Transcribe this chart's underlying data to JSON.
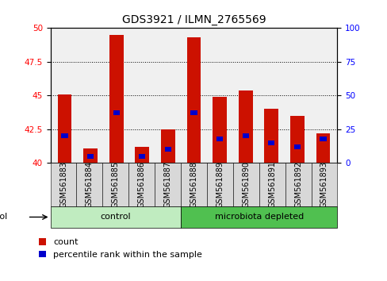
{
  "title": "GDS3921 / ILMN_2765569",
  "samples": [
    "GSM561883",
    "GSM561884",
    "GSM561885",
    "GSM561886",
    "GSM561887",
    "GSM561888",
    "GSM561889",
    "GSM561890",
    "GSM561891",
    "GSM561892",
    "GSM561893"
  ],
  "count_values": [
    45.1,
    41.1,
    49.5,
    41.2,
    42.5,
    49.3,
    44.9,
    45.4,
    44.0,
    43.5,
    42.2
  ],
  "percentile_values": [
    20,
    5,
    37,
    5,
    10,
    37,
    18,
    20,
    15,
    12,
    18
  ],
  "protocol_groups": [
    {
      "label": "control",
      "start": 0,
      "end": 5,
      "color": "#c0ecc0"
    },
    {
      "label": "microbiota depleted",
      "start": 5,
      "end": 11,
      "color": "#50c050"
    }
  ],
  "ylim_left": [
    40,
    50
  ],
  "ylim_right": [
    0,
    100
  ],
  "yticks_left": [
    40,
    42.5,
    45,
    47.5,
    50
  ],
  "yticks_right": [
    0,
    25,
    50,
    75,
    100
  ],
  "bar_color_red": "#cc1100",
  "bar_color_blue": "#0000cc",
  "grid_color": "black",
  "legend_items": [
    {
      "label": "count",
      "color": "#cc1100"
    },
    {
      "label": "percentile rank within the sample",
      "color": "#0000cc"
    }
  ],
  "plot_bg_color": "#f0f0f0",
  "title_fontsize": 10,
  "tick_fontsize": 7.5,
  "label_fontsize": 8
}
